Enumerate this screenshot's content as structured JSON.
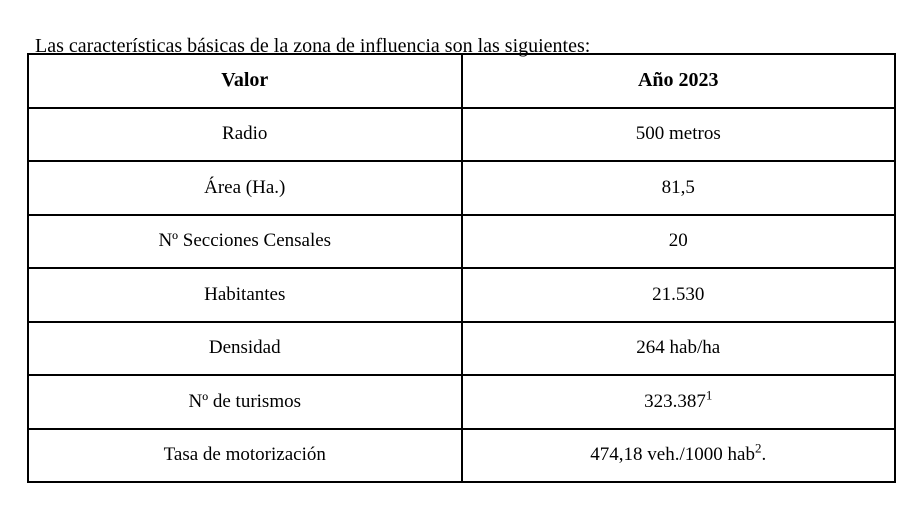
{
  "page": {
    "intro_text": "Las características básicas de la zona de influencia son las siguientes:"
  },
  "table": {
    "headers": [
      "Valor",
      "Año 2023"
    ],
    "rows": [
      {
        "label": "Radio",
        "value": "500 metros",
        "sup": "",
        "after": ""
      },
      {
        "label": "Área (Ha.)",
        "value": "81,5",
        "sup": "",
        "after": ""
      },
      {
        "label": "Nº Secciones Censales",
        "value": "20",
        "sup": "",
        "after": ""
      },
      {
        "label": "Habitantes",
        "value": "21.530",
        "sup": "",
        "after": ""
      },
      {
        "label": "Densidad",
        "value": "264 hab/ha",
        "sup": "",
        "after": ""
      },
      {
        "label": "Nº de turismos",
        "value": "323.387",
        "sup": "1",
        "after": ""
      },
      {
        "label": "Tasa de motorización",
        "value": "474,18 veh./1000 hab",
        "sup": "2",
        "after": "."
      }
    ]
  }
}
